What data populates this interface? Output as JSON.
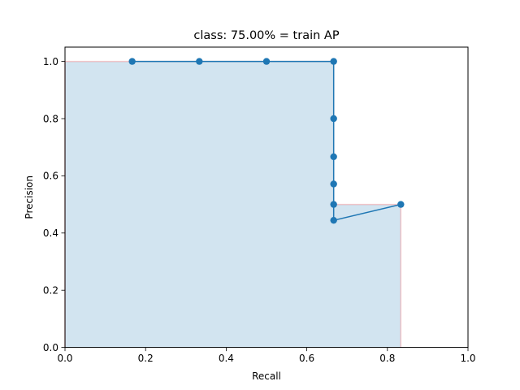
{
  "chart_data": {
    "type": "line",
    "title": "class: 75.00% = train AP",
    "xlabel": "Recall",
    "ylabel": "Precision",
    "xlim": [
      0,
      1
    ],
    "ylim": [
      0,
      1.05
    ],
    "xticks": [
      0,
      0.2,
      0.4,
      0.6,
      0.8,
      1.0
    ],
    "xtick_labels": [
      "0.0",
      "0.2",
      "0.4",
      "0.6",
      "0.8",
      "1.0"
    ],
    "yticks": [
      0,
      0.2,
      0.4,
      0.6,
      0.8,
      1.0
    ],
    "ytick_labels": [
      "0.0",
      "0.2",
      "0.4",
      "0.6",
      "0.8",
      "1.0"
    ],
    "grid": false,
    "series": [
      {
        "kind": "line-with-markers",
        "color": "#1f77b4",
        "x": [
          0.1667,
          0.3333,
          0.5,
          0.6667,
          0.6667,
          0.6667,
          0.6667,
          0.6667,
          0.6667,
          0.8333
        ],
        "y": [
          1.0,
          1.0,
          1.0,
          1.0,
          0.8,
          0.6667,
          0.5714,
          0.5,
          0.4444,
          0.5
        ]
      },
      {
        "kind": "interpolated-area",
        "fill_color": "#1f77b4",
        "edge_color": "#ff0000",
        "x": [
          0.0,
          0.0,
          0.6667,
          0.6667,
          0.8333,
          0.8333
        ],
        "y": [
          0.0,
          1.0,
          1.0,
          0.5,
          0.5,
          0.0
        ]
      }
    ]
  }
}
